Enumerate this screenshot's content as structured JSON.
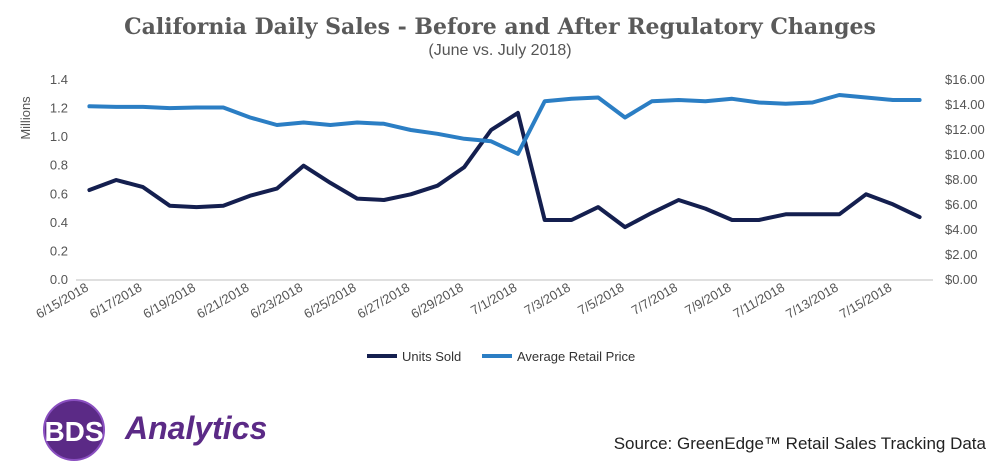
{
  "header": {
    "title": "California Daily Sales - Before and After Regulatory Changes",
    "subtitle": "(June vs. July 2018)"
  },
  "chart_data": {
    "type": "line",
    "ylabel": "Millions",
    "ylim": [
      0,
      1.4
    ],
    "y2lim": [
      0,
      16
    ],
    "y_ticks": [
      "0.0",
      "0.2",
      "0.4",
      "0.6",
      "0.8",
      "1.0",
      "1.2",
      "1.4"
    ],
    "y2_ticks": [
      "$0.00",
      "$2.00",
      "$4.00",
      "$6.00",
      "$8.00",
      "$10.00",
      "$12.00",
      "$14.00",
      "$16.00"
    ],
    "x": [
      "6/15/2018",
      "6/16/2018",
      "6/17/2018",
      "6/18/2018",
      "6/19/2018",
      "6/20/2018",
      "6/21/2018",
      "6/22/2018",
      "6/23/2018",
      "6/24/2018",
      "6/25/2018",
      "6/26/2018",
      "6/27/2018",
      "6/28/2018",
      "6/29/2018",
      "6/30/2018",
      "7/1/2018",
      "7/2/2018",
      "7/3/2018",
      "7/4/2018",
      "7/5/2018",
      "7/6/2018",
      "7/7/2018",
      "7/8/2018",
      "7/9/2018",
      "7/10/2018",
      "7/11/2018",
      "7/12/2018",
      "7/13/2018",
      "7/14/2018",
      "7/15/2018",
      "7/16/2018"
    ],
    "x_tick_labels": [
      "6/15/2018",
      "6/17/2018",
      "6/19/2018",
      "6/21/2018",
      "6/23/2018",
      "6/25/2018",
      "6/27/2018",
      "6/29/2018",
      "7/1/2018",
      "7/3/2018",
      "7/5/2018",
      "7/7/2018",
      "7/9/2018",
      "7/11/2018",
      "7/13/2018",
      "7/15/2018"
    ],
    "legend_position": "bottom",
    "series": [
      {
        "name": "Units Sold",
        "axis": "left",
        "color": "#141f4f",
        "values": [
          0.63,
          0.7,
          0.65,
          0.52,
          0.51,
          0.52,
          0.59,
          0.64,
          0.8,
          0.68,
          0.57,
          0.56,
          0.6,
          0.66,
          0.79,
          1.05,
          1.17,
          0.42,
          0.42,
          0.51,
          0.37,
          0.47,
          0.56,
          0.5,
          0.42,
          0.42,
          0.46,
          0.46,
          0.46,
          0.6,
          0.53,
          0.44
        ]
      },
      {
        "name": "Average Retail Price",
        "axis": "right",
        "color": "#2b7ec4",
        "values": [
          13.9,
          13.85,
          13.85,
          13.75,
          13.8,
          13.8,
          13.0,
          12.4,
          12.6,
          12.4,
          12.6,
          12.5,
          12.0,
          11.7,
          11.3,
          11.1,
          10.1,
          14.3,
          14.5,
          14.6,
          13.0,
          14.3,
          14.4,
          14.3,
          14.5,
          14.2,
          14.1,
          14.2,
          14.8,
          14.6,
          14.4,
          14.4
        ]
      }
    ]
  },
  "logo": {
    "text": "Analytics",
    "mark_text": "BDS"
  },
  "footer": {
    "source": "Source: GreenEdge™ Retail Sales Tracking Data"
  }
}
